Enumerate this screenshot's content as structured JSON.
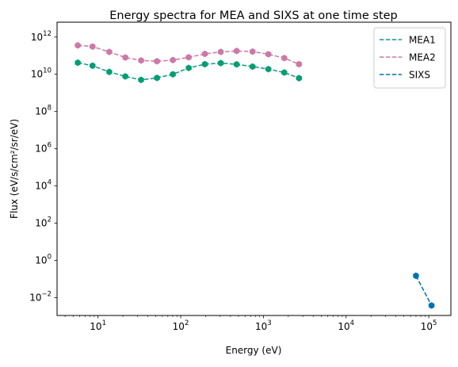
{
  "chart_data": {
    "type": "line",
    "title": "Energy spectra for MEA and SIXS at one time step",
    "xlabel": "Energy (eV)",
    "ylabel": "Flux (eV/s/cm²/sr/eV)",
    "xscale": "log",
    "yscale": "log",
    "xlim": [
      3.2,
      185000
    ],
    "ylim": [
      0.0011,
      6300000000000.0
    ],
    "x_ticks": [
      {
        "value": 10,
        "base": "10",
        "exp": "1"
      },
      {
        "value": 100,
        "base": "10",
        "exp": "2"
      },
      {
        "value": 1000,
        "base": "10",
        "exp": "3"
      },
      {
        "value": 10000,
        "base": "10",
        "exp": "4"
      },
      {
        "value": 100000,
        "base": "10",
        "exp": "5"
      }
    ],
    "y_ticks": [
      {
        "value": 0.01,
        "base": "10",
        "exp": "−2"
      },
      {
        "value": 1,
        "base": "10",
        "exp": "0"
      },
      {
        "value": 100,
        "base": "10",
        "exp": "2"
      },
      {
        "value": 10000,
        "base": "10",
        "exp": "4"
      },
      {
        "value": 1000000,
        "base": "10",
        "exp": "6"
      },
      {
        "value": 100000000,
        "base": "10",
        "exp": "8"
      },
      {
        "value": 10000000000,
        "base": "10",
        "exp": "10"
      },
      {
        "value": 1000000000000,
        "base": "10",
        "exp": "12"
      }
    ],
    "legend_position": "top-right",
    "grid": false,
    "series": [
      {
        "name": "MEA1",
        "line_color": "#17958a",
        "marker_color": "#009e73",
        "x": [
          5.7,
          8.6,
          13.7,
          21.4,
          33.2,
          51.7,
          80.5,
          125,
          196,
          305,
          475,
          740,
          1150,
          1790,
          2700
        ],
        "y": [
          42000000000.0,
          29000000000.0,
          13500000000.0,
          7700000000.0,
          5000000000.0,
          6400000000.0,
          10000000000.0,
          22000000000.0,
          35000000000.0,
          40000000000.0,
          34000000000.0,
          26000000000.0,
          19000000000.0,
          12500000000.0,
          6200000000.0
        ]
      },
      {
        "name": "MEA2",
        "line_color": "#cc79a7",
        "marker_color": "#cc79a7",
        "x": [
          5.7,
          8.6,
          13.7,
          21.4,
          33.2,
          51.7,
          80.5,
          125,
          196,
          305,
          475,
          740,
          1150,
          1790,
          2700
        ],
        "y": [
          360000000000.0,
          310000000000.0,
          160000000000.0,
          80000000000.0,
          55000000000.0,
          50000000000.0,
          58000000000.0,
          82000000000.0,
          125000000000.0,
          160000000000.0,
          180000000000.0,
          165000000000.0,
          120000000000.0,
          74000000000.0,
          35000000000.0
        ]
      },
      {
        "name": "SIXS",
        "line_color": "#0072b2",
        "marker_color": "#0072b2",
        "x": [
          70000,
          108000
        ],
        "y": [
          0.15,
          0.0038
        ]
      }
    ]
  }
}
